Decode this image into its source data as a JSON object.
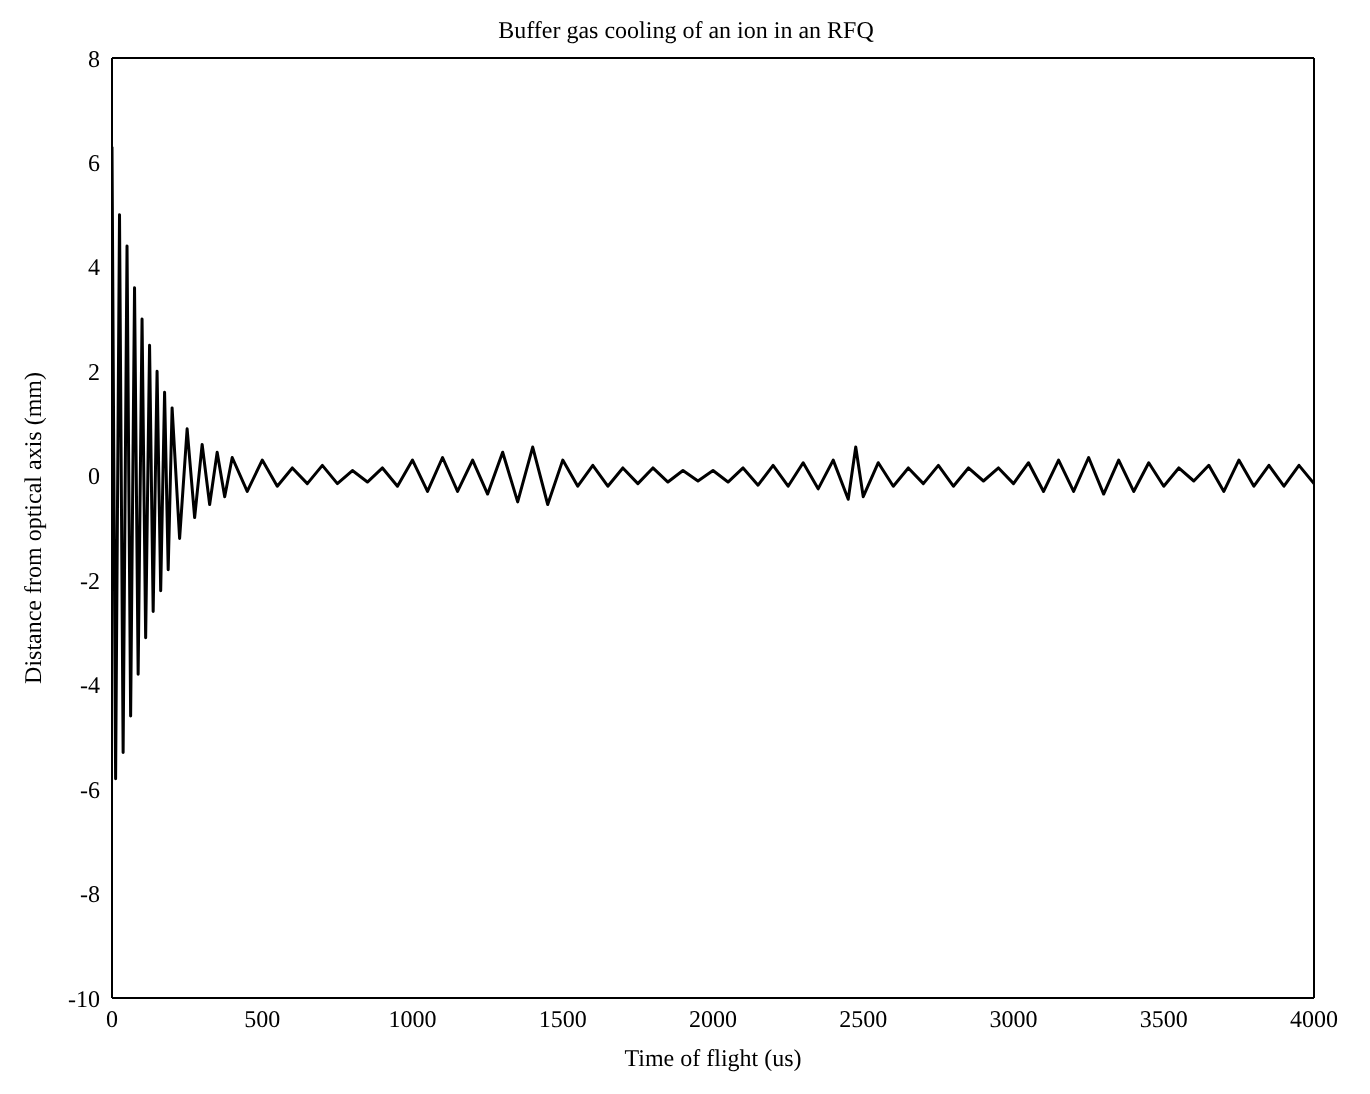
{
  "chart_data": {
    "type": "line",
    "title": "Buffer gas cooling of an ion in an RFQ",
    "xlabel": "Time of flight (us)",
    "ylabel": "Distance from optical axis (mm)",
    "x": [
      0,
      12,
      25,
      37,
      50,
      62,
      75,
      87,
      100,
      112,
      125,
      137,
      150,
      162,
      175,
      187,
      200,
      225,
      250,
      275,
      300,
      325,
      350,
      375,
      400,
      450,
      500,
      550,
      600,
      650,
      700,
      750,
      800,
      850,
      900,
      950,
      1000,
      1050,
      1100,
      1150,
      1200,
      1250,
      1300,
      1350,
      1400,
      1450,
      1500,
      1550,
      1600,
      1650,
      1700,
      1750,
      1800,
      1850,
      1900,
      1950,
      2000,
      2050,
      2100,
      2150,
      2200,
      2250,
      2300,
      2350,
      2400,
      2450,
      2475,
      2500,
      2550,
      2600,
      2650,
      2700,
      2750,
      2800,
      2850,
      2900,
      2950,
      3000,
      3050,
      3100,
      3150,
      3200,
      3250,
      3300,
      3350,
      3400,
      3450,
      3500,
      3550,
      3600,
      3650,
      3700,
      3750,
      3800,
      3850,
      3900,
      3950,
      4000
    ],
    "series": [
      {
        "color": "#000000",
        "values": [
          6.3,
          -5.8,
          5.0,
          -5.3,
          4.4,
          -4.6,
          3.6,
          -3.8,
          3.0,
          -3.1,
          2.5,
          -2.6,
          2.0,
          -2.2,
          1.6,
          -1.8,
          1.3,
          -1.2,
          0.9,
          -0.8,
          0.6,
          -0.55,
          0.45,
          -0.4,
          0.35,
          -0.3,
          0.3,
          -0.2,
          0.15,
          -0.15,
          0.2,
          -0.15,
          0.1,
          -0.12,
          0.15,
          -0.2,
          0.3,
          -0.3,
          0.35,
          -0.3,
          0.3,
          -0.35,
          0.45,
          -0.5,
          0.55,
          -0.55,
          0.3,
          -0.2,
          0.2,
          -0.2,
          0.15,
          -0.15,
          0.15,
          -0.12,
          0.1,
          -0.1,
          0.1,
          -0.12,
          0.15,
          -0.18,
          0.2,
          -0.2,
          0.25,
          -0.25,
          0.3,
          -0.45,
          0.55,
          -0.4,
          0.25,
          -0.2,
          0.15,
          -0.15,
          0.2,
          -0.2,
          0.15,
          -0.1,
          0.15,
          -0.15,
          0.25,
          -0.3,
          0.3,
          -0.3,
          0.35,
          -0.35,
          0.3,
          -0.3,
          0.25,
          -0.2,
          0.15,
          -0.1,
          0.2,
          -0.3,
          0.3,
          -0.2,
          0.2,
          -0.2,
          0.2,
          -0.15
        ]
      }
    ],
    "xlim": [
      0,
      4000
    ],
    "xticks": [
      0,
      500,
      1000,
      1500,
      2000,
      2500,
      3000,
      3500,
      4000
    ],
    "ylim": [
      -10,
      8
    ],
    "yticks": [
      -10,
      -8,
      -6,
      -4,
      -2,
      0,
      2,
      4,
      6,
      8
    ],
    "grid": false,
    "legend": false,
    "marker": "none",
    "line_style": "solid"
  }
}
